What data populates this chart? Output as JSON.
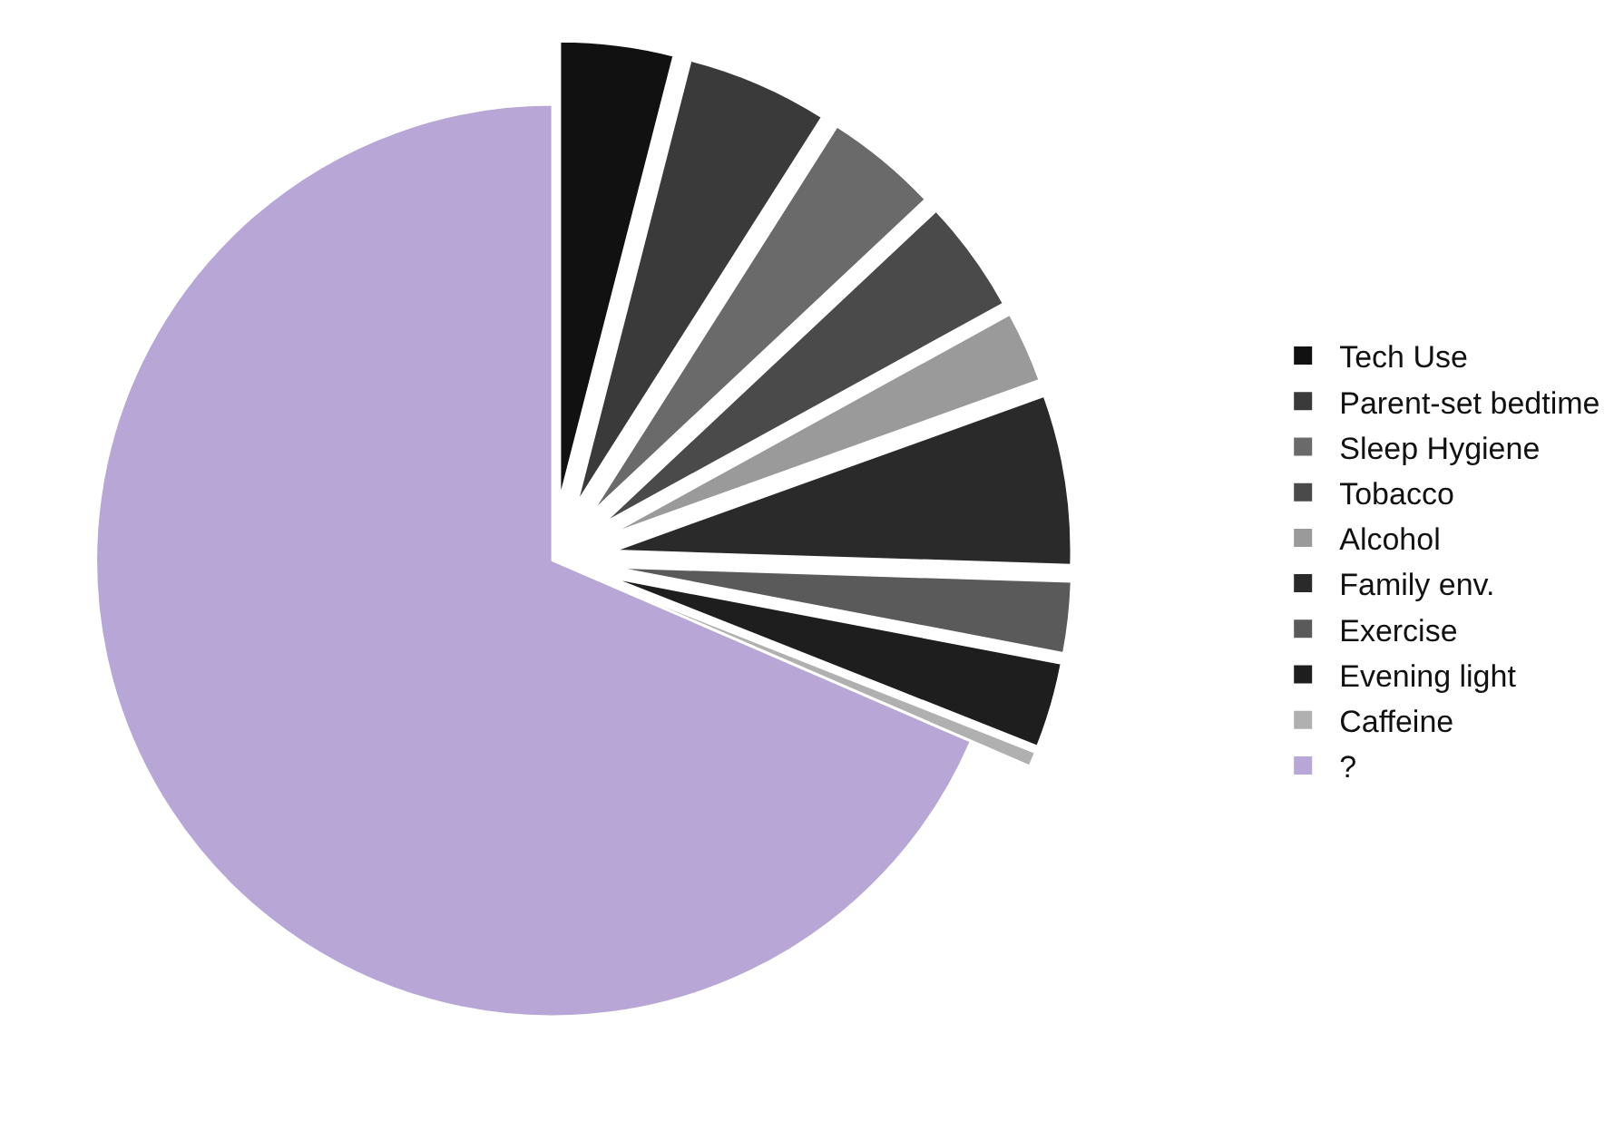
{
  "chart_data": {
    "type": "pie",
    "categories": [
      "Tech Use",
      "Parent-set bedtime",
      "Sleep Hygiene",
      "Tobacco",
      "Alcohol",
      "Family env.",
      "Exercise",
      "Evening light",
      "Caffeine",
      "?"
    ],
    "values": [
      4,
      5,
      4,
      4,
      2.5,
      6,
      2.5,
      3,
      0.5,
      68.5
    ],
    "colors": [
      "#111111",
      "#3a3a3a",
      "#6a6a6a",
      "#4a4a4a",
      "#9a9a9a",
      "#2a2a2a",
      "#5a5a5a",
      "#1e1e1e",
      "#b0b0b0",
      "#b7a6d6"
    ],
    "legend": "right"
  }
}
